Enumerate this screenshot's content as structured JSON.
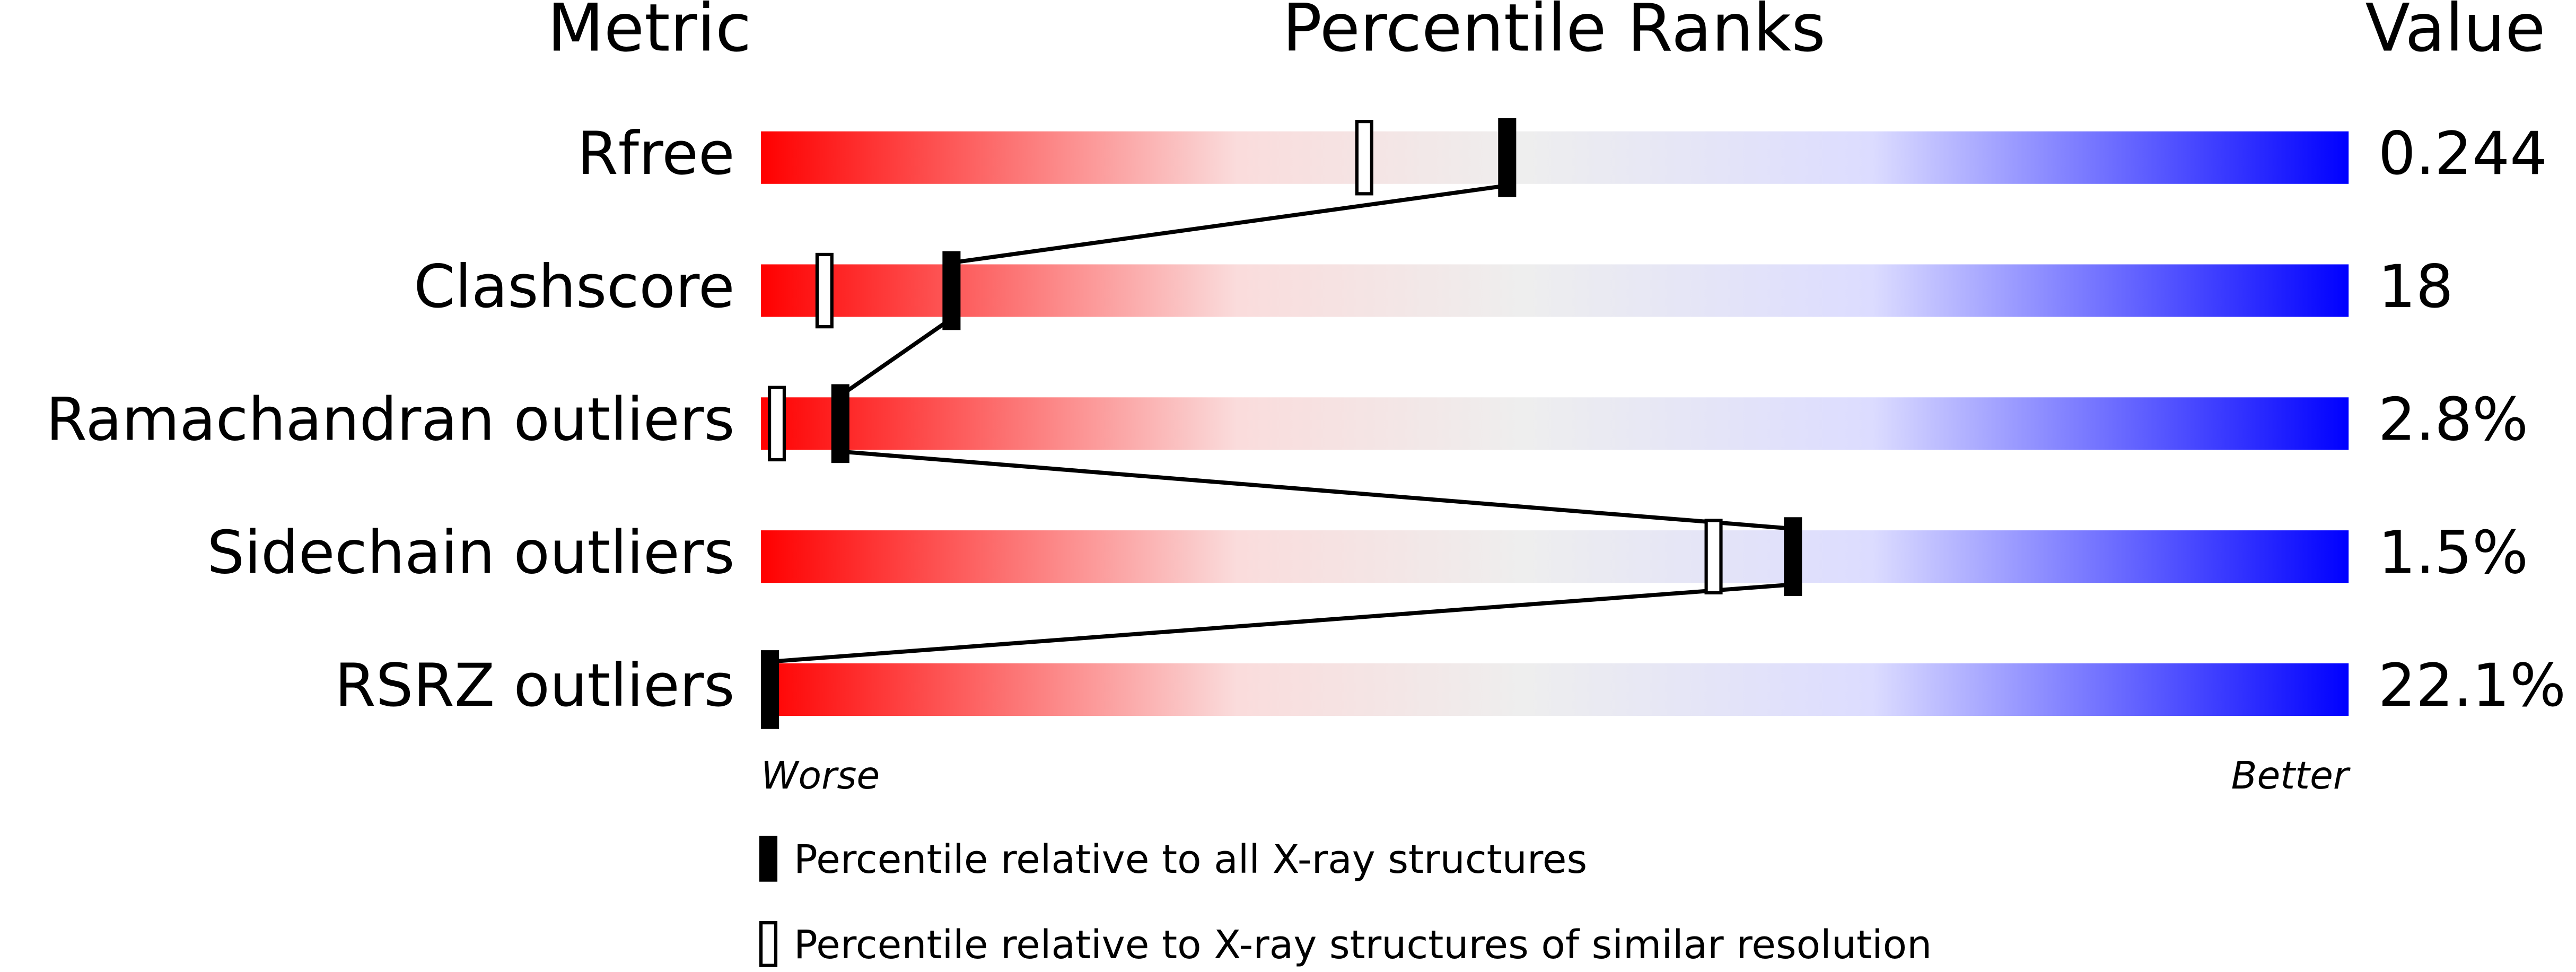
{
  "chart_data": {
    "type": "slider",
    "column_headers": [
      "Metric",
      "Percentile Ranks",
      "Value"
    ],
    "categories": [
      "Rfree",
      "Clashscore",
      "Ramachandran outliers",
      "Sidechain outliers",
      "RSRZ outliers"
    ],
    "metric_values": [
      "0.244",
      "18",
      "2.8%",
      "1.5%",
      "22.1%"
    ],
    "series": [
      {
        "name": "Percentile relative to all X-ray structures",
        "color": "#000000",
        "values": [
          47,
          12,
          5,
          65,
          0
        ]
      },
      {
        "name": "Percentile relative to X-ray structures of similar resolution",
        "color": "#ffffff",
        "values": [
          38,
          4,
          1,
          60,
          null
        ]
      }
    ],
    "xlim": [
      0,
      100
    ],
    "axis_end_labels": [
      "Worse",
      "Better"
    ]
  }
}
